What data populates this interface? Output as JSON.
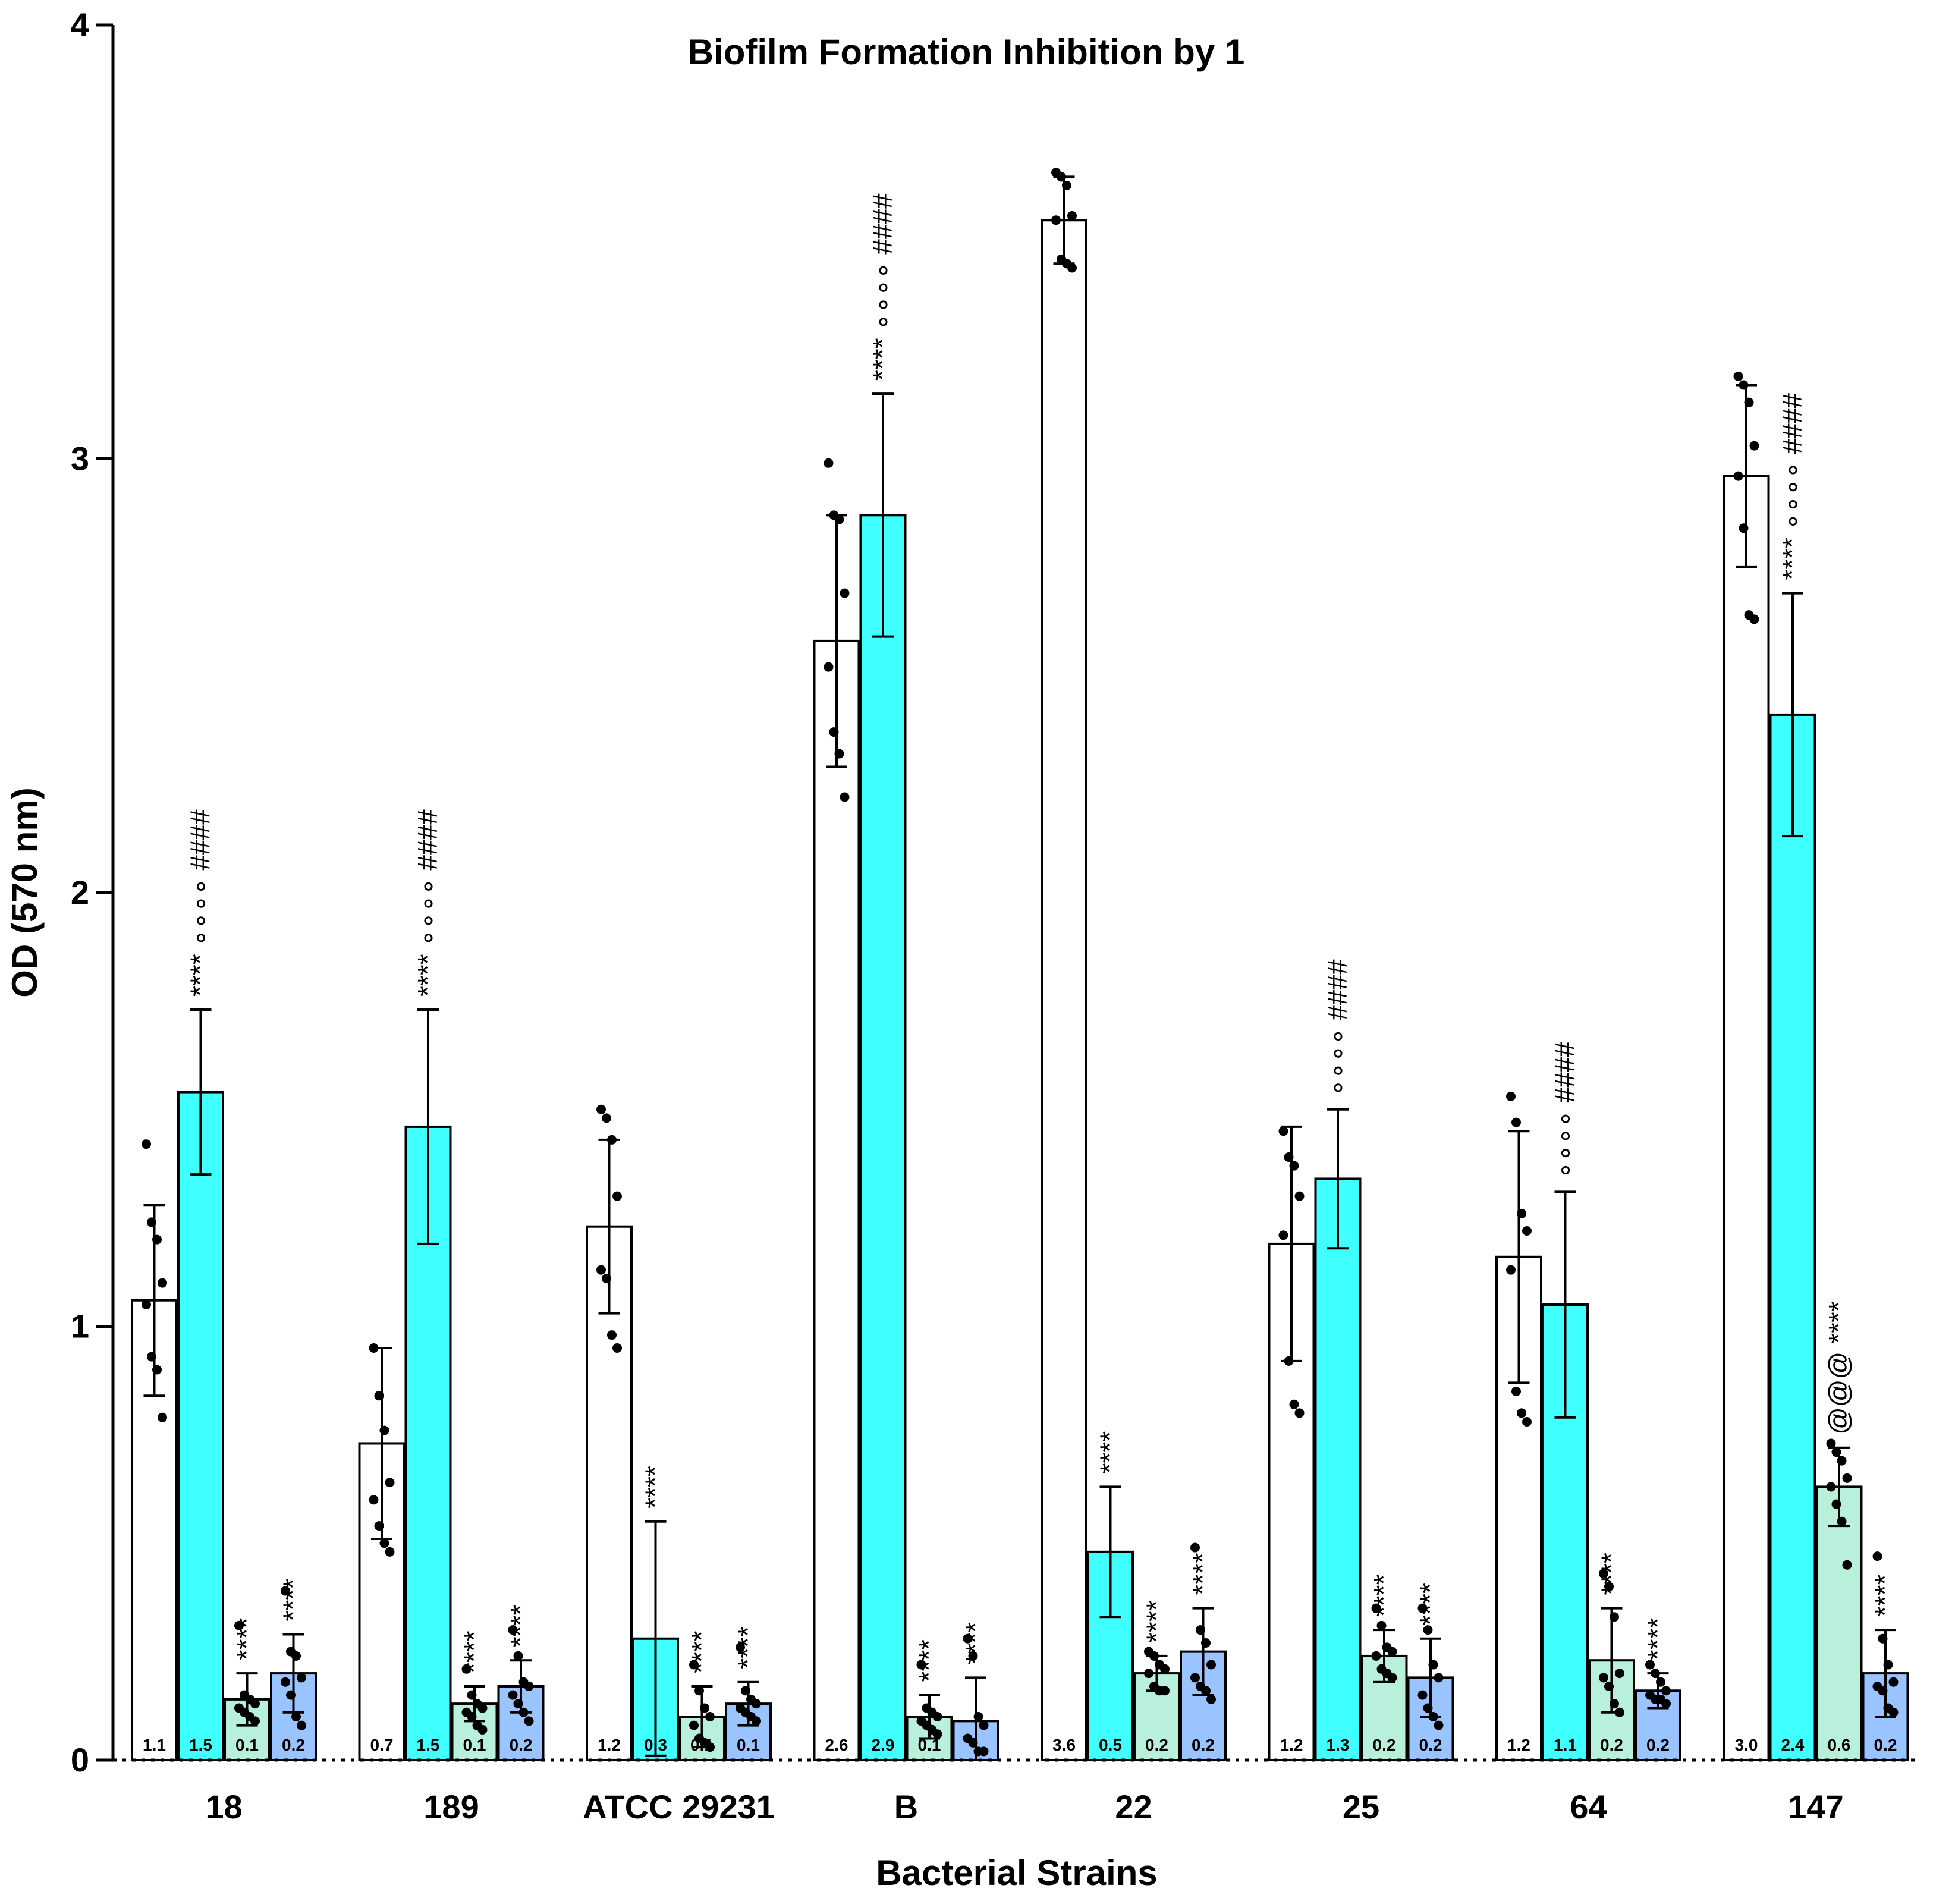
{
  "chart_data": {
    "type": "bar",
    "title": "Biofilm Formation Inhibition by 1",
    "xlabel": "Bacterial Strains",
    "ylabel": "OD (570 nm)",
    "ylim": [
      0,
      4
    ],
    "yticks": [
      "0",
      "1",
      "2",
      "3",
      "4"
    ],
    "grid": false,
    "legend": "none",
    "categories": [
      "18",
      "189",
      "ATCC 29231",
      "B",
      "22",
      "25",
      "64",
      "147"
    ],
    "series": [
      {
        "color": "#ffffff",
        "values": [
          1.06,
          0.73,
          1.23,
          2.58,
          3.55,
          1.19,
          1.16,
          2.96
        ],
        "sd": [
          0.22,
          0.22,
          0.2,
          0.29,
          0.1,
          0.27,
          0.29,
          0.21
        ],
        "labels": [
          "1.1",
          "0.7",
          "1.2",
          "2.6",
          "3.6",
          "1.2",
          "1.2",
          "3.0"
        ],
        "annotations": [
          "",
          "",
          "",
          "",
          "",
          "",
          "",
          ""
        ]
      },
      {
        "color": "#40ffff",
        "values": [
          1.54,
          1.46,
          0.28,
          2.87,
          0.48,
          1.34,
          1.05,
          2.41
        ],
        "sd": [
          0.19,
          0.27,
          0.27,
          0.28,
          0.15,
          0.16,
          0.26,
          0.28
        ],
        "labels": [
          "1.5",
          "1.5",
          "0.3",
          "2.9",
          "0.5",
          "1.3",
          "1.1",
          "2.4"
        ],
        "annotations": [
          "**** ∘∘∘∘ ####",
          "**** ∘∘∘∘ ####",
          "****",
          "**** ∘∘∘∘ ####",
          "****",
          "∘∘∘∘ ####",
          "∘∘∘∘ ####",
          "**** ∘∘∘∘ ####"
        ]
      },
      {
        "color": "#b8f0dc",
        "values": [
          0.14,
          0.13,
          0.1,
          0.1,
          0.2,
          0.24,
          0.23,
          0.63
        ],
        "sd": [
          0.06,
          0.04,
          0.07,
          0.05,
          0.04,
          0.06,
          0.12,
          0.09
        ],
        "labels": [
          "0.1",
          "0.1",
          "0.1",
          "0.1",
          "0.2",
          "0.2",
          "0.2",
          "0.6"
        ],
        "annotations": [
          "****",
          "****",
          "****",
          "****",
          "****",
          "****",
          "****",
          "@@@ ****"
        ]
      },
      {
        "color": "#99c4ff",
        "values": [
          0.2,
          0.17,
          0.13,
          0.09,
          0.25,
          0.19,
          0.16,
          0.2
        ],
        "sd": [
          0.09,
          0.06,
          0.05,
          0.1,
          0.1,
          0.09,
          0.04,
          0.1
        ],
        "labels": [
          "0.2",
          "0.2",
          "0.1",
          "",
          "0.2",
          "0.2",
          "0.2",
          "0.2"
        ],
        "annotations": [
          "****",
          "****",
          "****",
          "****",
          "****",
          "****",
          "****",
          "****"
        ]
      }
    ],
    "points": [
      [
        [
          1.42,
          1.24,
          1.2,
          1.1,
          1.05,
          0.93,
          0.9,
          0.79
        ],
        [
          0.95,
          0.84,
          0.76,
          0.64,
          0.6,
          0.54,
          0.5,
          0.48
        ],
        [
          1.5,
          1.48,
          1.43,
          1.3,
          1.13,
          1.11,
          0.98,
          0.95
        ],
        [
          2.99,
          2.87,
          2.86,
          2.69,
          2.52,
          2.37,
          2.32,
          2.22
        ],
        [
          3.66,
          3.65,
          3.63,
          3.56,
          3.55,
          3.46,
          3.45,
          3.44
        ],
        [
          1.45,
          1.39,
          1.37,
          1.3,
          1.21,
          0.92,
          0.82,
          0.8
        ],
        [
          1.53,
          1.47,
          1.26,
          1.22,
          1.13,
          0.85,
          0.8,
          0.78
        ],
        [
          3.19,
          3.17,
          3.13,
          3.03,
          2.96,
          2.84,
          2.64,
          2.63
        ]
      ],
      [
        [],
        [],
        [],
        [],
        [],
        [],
        [],
        []
      ],
      [
        [
          0.31,
          0.15,
          0.14,
          0.13,
          0.12,
          0.11,
          0.1,
          0.09
        ],
        [
          0.21,
          0.15,
          0.13,
          0.12,
          0.11,
          0.1,
          0.08,
          0.07
        ],
        [
          0.22,
          0.16,
          0.12,
          0.1,
          0.08,
          0.05,
          0.04,
          0.03
        ],
        [
          0.22,
          0.12,
          0.11,
          0.1,
          0.09,
          0.08,
          0.07,
          0.06
        ],
        [
          0.25,
          0.24,
          0.22,
          0.21,
          0.2,
          0.17,
          0.16,
          0.16
        ],
        [
          0.35,
          0.31,
          0.26,
          0.25,
          0.24,
          0.21,
          0.2,
          0.19
        ],
        [
          0.43,
          0.4,
          0.33,
          0.2,
          0.19,
          0.17,
          0.13,
          0.11
        ],
        [
          0.73,
          0.71,
          0.69,
          0.65,
          0.63,
          0.59,
          0.55,
          0.45
        ]
      ],
      [
        [
          0.39,
          0.25,
          0.24,
          0.19,
          0.18,
          0.15,
          0.1,
          0.08
        ],
        [
          0.3,
          0.24,
          0.18,
          0.17,
          0.15,
          0.13,
          0.11,
          0.09
        ],
        [
          0.26,
          0.16,
          0.14,
          0.13,
          0.12,
          0.11,
          0.1,
          0.09
        ],
        [
          0.28,
          0.24,
          0.1,
          0.08,
          0.05,
          0.04,
          0.02,
          0.02
        ],
        [
          0.49,
          0.3,
          0.27,
          0.22,
          0.19,
          0.17,
          0.16,
          0.14
        ],
        [
          0.35,
          0.3,
          0.22,
          0.19,
          0.15,
          0.12,
          0.1,
          0.08
        ],
        [
          0.22,
          0.2,
          0.18,
          0.16,
          0.15,
          0.14,
          0.14,
          0.13
        ],
        [
          0.47,
          0.28,
          0.22,
          0.18,
          0.17,
          0.16,
          0.12,
          0.11
        ]
      ]
    ]
  }
}
